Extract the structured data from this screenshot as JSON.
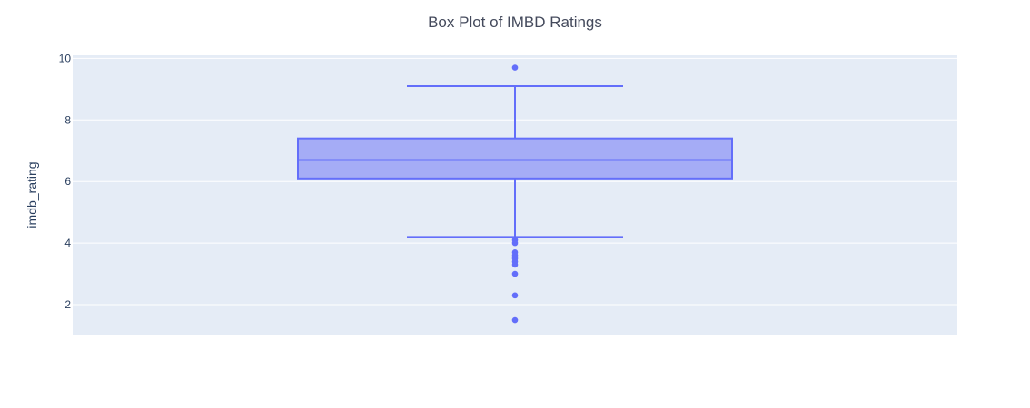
{
  "colors": {
    "plot_bg": "#e5ecf6",
    "grid": "#ffffff",
    "box_fill": "#a5acf6",
    "box_line": "#636efa",
    "text": "#2a3f5f"
  },
  "chart_data": {
    "type": "box",
    "title": "Box Plot of IMBD Ratings",
    "xlabel": "",
    "ylabel": "imdb_rating",
    "ylim": [
      1.0,
      10.1
    ],
    "yticks": [
      2,
      4,
      6,
      8,
      10
    ],
    "grid": true,
    "box": {
      "lower_fence": 4.2,
      "q1": 6.1,
      "median": 6.7,
      "q3": 7.4,
      "upper_fence": 9.1
    },
    "outliers": [
      9.7,
      4.1,
      4.0,
      3.7,
      3.6,
      3.5,
      3.4,
      3.3,
      3.0,
      2.3,
      1.5
    ]
  }
}
